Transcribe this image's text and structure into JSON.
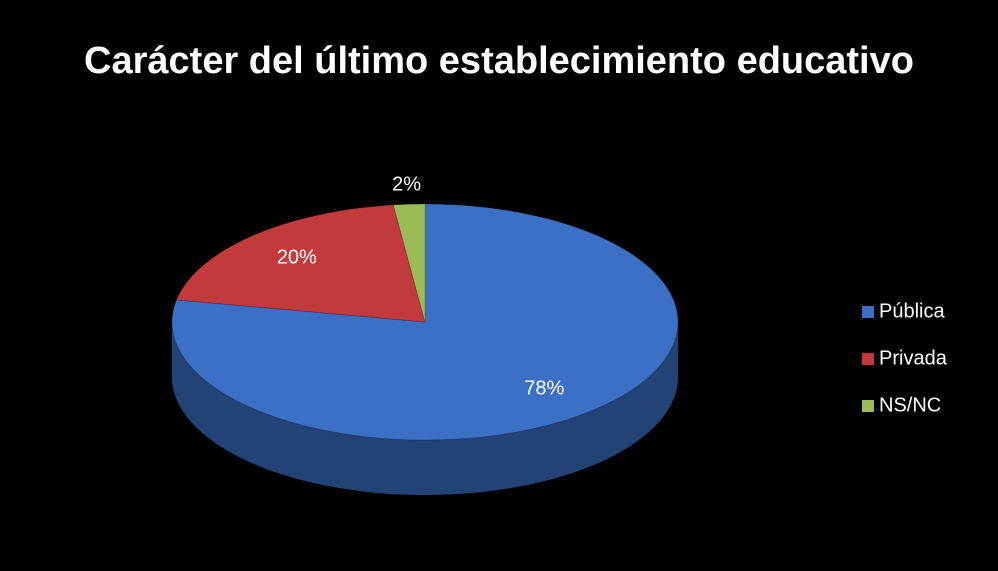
{
  "chart_data": {
    "type": "pie3d",
    "title": "Carácter del último establecimiento educativo",
    "categories": [
      "Pública",
      "Privada",
      "NS/NC"
    ],
    "values": [
      78,
      20,
      2
    ],
    "value_labels": [
      "78%",
      "20%",
      "2%"
    ],
    "colors": [
      "#3b70c6",
      "#c23a3b",
      "#9bbb59"
    ],
    "legend": "right"
  }
}
